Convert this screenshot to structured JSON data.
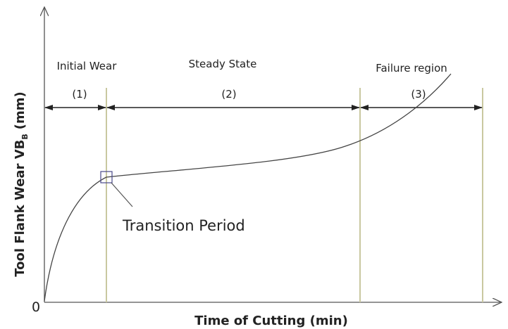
{
  "regions": [
    {
      "name": "Initial Wear",
      "number": "(1)"
    },
    {
      "name": "Steady State",
      "number": "(2)"
    },
    {
      "name": "Failure region",
      "number": "(3)"
    }
  ],
  "annotation": "Transition Period",
  "axes": {
    "origin": "0",
    "x_label": "Time of Cutting (min)",
    "y_label": {
      "main": "Tool Flank Wear VB",
      "subscript": "B",
      "unit": "(mm)"
    }
  }
}
